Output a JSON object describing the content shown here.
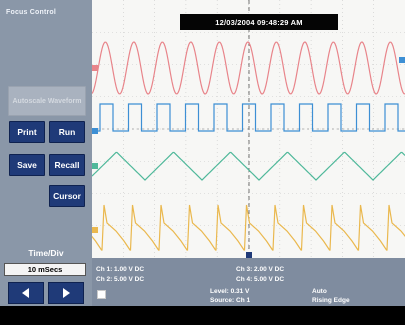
{
  "panel": {
    "focus_label": "Focus Control",
    "autoscale_label": "Autoscale Waveform",
    "print_label": "Print",
    "run_label": "Run",
    "save_label": "Save",
    "recall_label": "Recall",
    "cursor_label": "Cursor",
    "timediv_label": "Time/Div",
    "timediv_value": "10 mSecs"
  },
  "timestamp": "12/03/2004 09:48:29 AM",
  "status": {
    "ch1": "Ch 1: 1.00 V DC",
    "ch2": "Ch 2: 5.00 V DC",
    "ch3": "Ch 3: 2.00 V DC",
    "ch4": "Ch 4: 5.00 V DC",
    "level": "Level: 0.31 V",
    "source": "Source: Ch 1",
    "mode": "Auto",
    "edge": "Rising Edge"
  },
  "colors": {
    "ch1": "#e8848a",
    "ch2": "#3d8fd4",
    "ch3": "#4fb89a",
    "ch4": "#eab84e",
    "grid": "#c9c9c9",
    "button": "#1f3a78",
    "panel": "#8a97a8"
  },
  "icons": {
    "left": "left-arrow-icon",
    "right": "right-arrow-icon"
  }
}
